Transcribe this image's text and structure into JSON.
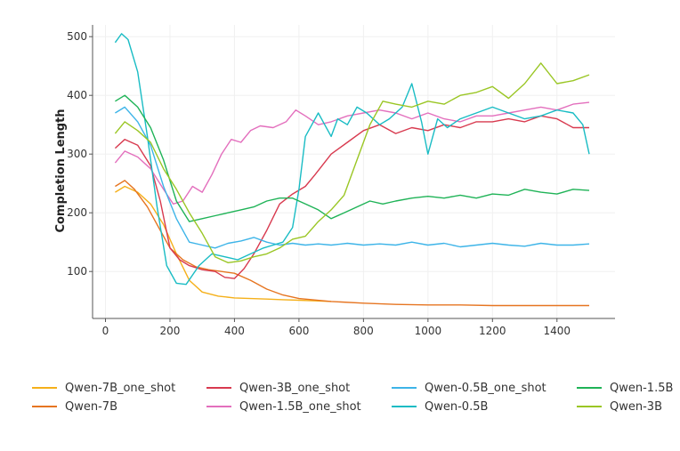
{
  "chart_data": {
    "type": "line",
    "title": "",
    "xlabel": "",
    "ylabel": "Completion Length",
    "xlim": [
      -40,
      1580
    ],
    "ylim": [
      20,
      520
    ],
    "xticks": [
      0,
      200,
      400,
      600,
      800,
      1000,
      1200,
      1400
    ],
    "yticks": [
      100,
      200,
      300,
      400,
      500
    ],
    "grid": true,
    "legend_position": "bottom",
    "series": [
      {
        "name": "Qwen-7B_one_shot",
        "color": "#f5b01a",
        "points": [
          [
            30,
            235
          ],
          [
            60,
            245
          ],
          [
            100,
            235
          ],
          [
            140,
            215
          ],
          [
            180,
            180
          ],
          [
            220,
            130
          ],
          [
            260,
            85
          ],
          [
            300,
            65
          ],
          [
            350,
            58
          ],
          [
            400,
            55
          ],
          [
            450,
            54
          ],
          [
            500,
            53
          ],
          [
            550,
            52
          ],
          [
            600,
            51
          ],
          [
            650,
            50
          ],
          [
            700,
            49
          ]
        ]
      },
      {
        "name": "Qwen-7B",
        "color": "#e67521",
        "points": [
          [
            30,
            245
          ],
          [
            60,
            255
          ],
          [
            90,
            240
          ],
          [
            130,
            210
          ],
          [
            170,
            170
          ],
          [
            200,
            140
          ],
          [
            240,
            120
          ],
          [
            280,
            108
          ],
          [
            320,
            103
          ],
          [
            360,
            100
          ],
          [
            400,
            97
          ],
          [
            450,
            85
          ],
          [
            500,
            70
          ],
          [
            550,
            60
          ],
          [
            600,
            54
          ],
          [
            700,
            49
          ],
          [
            800,
            46
          ],
          [
            900,
            44
          ],
          [
            1000,
            43
          ],
          [
            1100,
            43
          ],
          [
            1200,
            42
          ],
          [
            1300,
            42
          ],
          [
            1400,
            42
          ],
          [
            1500,
            42
          ]
        ]
      },
      {
        "name": "Qwen-3B_one_shot",
        "color": "#d83a4f",
        "points": [
          [
            30,
            310
          ],
          [
            60,
            325
          ],
          [
            100,
            315
          ],
          [
            140,
            280
          ],
          [
            170,
            220
          ],
          [
            200,
            140
          ],
          [
            230,
            120
          ],
          [
            260,
            110
          ],
          [
            300,
            103
          ],
          [
            340,
            100
          ],
          [
            370,
            90
          ],
          [
            400,
            88
          ],
          [
            430,
            105
          ],
          [
            460,
            130
          ],
          [
            500,
            170
          ],
          [
            540,
            215
          ],
          [
            580,
            232
          ],
          [
            620,
            245
          ],
          [
            650,
            265
          ],
          [
            700,
            300
          ],
          [
            750,
            320
          ],
          [
            800,
            340
          ],
          [
            850,
            350
          ],
          [
            900,
            335
          ],
          [
            950,
            345
          ],
          [
            1000,
            340
          ],
          [
            1050,
            350
          ],
          [
            1100,
            345
          ],
          [
            1150,
            355
          ],
          [
            1200,
            355
          ],
          [
            1250,
            360
          ],
          [
            1300,
            355
          ],
          [
            1350,
            365
          ],
          [
            1400,
            360
          ],
          [
            1450,
            345
          ],
          [
            1500,
            345
          ]
        ]
      },
      {
        "name": "Qwen-1.5B_one_shot",
        "color": "#e36fbd",
        "points": [
          [
            30,
            285
          ],
          [
            60,
            305
          ],
          [
            100,
            295
          ],
          [
            140,
            275
          ],
          [
            180,
            240
          ],
          [
            210,
            215
          ],
          [
            240,
            220
          ],
          [
            270,
            245
          ],
          [
            300,
            235
          ],
          [
            330,
            265
          ],
          [
            360,
            300
          ],
          [
            390,
            325
          ],
          [
            420,
            320
          ],
          [
            450,
            340
          ],
          [
            480,
            348
          ],
          [
            520,
            345
          ],
          [
            560,
            355
          ],
          [
            590,
            375
          ],
          [
            620,
            365
          ],
          [
            660,
            350
          ],
          [
            700,
            355
          ],
          [
            750,
            365
          ],
          [
            800,
            370
          ],
          [
            850,
            375
          ],
          [
            900,
            370
          ],
          [
            950,
            360
          ],
          [
            1000,
            370
          ],
          [
            1050,
            360
          ],
          [
            1100,
            355
          ],
          [
            1150,
            365
          ],
          [
            1200,
            365
          ],
          [
            1250,
            370
          ],
          [
            1300,
            375
          ],
          [
            1350,
            380
          ],
          [
            1400,
            375
          ],
          [
            1450,
            385
          ],
          [
            1500,
            388
          ]
        ]
      },
      {
        "name": "Qwen-0.5B_one_shot",
        "color": "#3db4e8",
        "points": [
          [
            30,
            370
          ],
          [
            60,
            380
          ],
          [
            100,
            355
          ],
          [
            140,
            315
          ],
          [
            180,
            245
          ],
          [
            220,
            190
          ],
          [
            260,
            150
          ],
          [
            300,
            145
          ],
          [
            340,
            140
          ],
          [
            380,
            148
          ],
          [
            420,
            152
          ],
          [
            460,
            158
          ],
          [
            500,
            150
          ],
          [
            540,
            145
          ],
          [
            580,
            148
          ],
          [
            620,
            145
          ],
          [
            660,
            147
          ],
          [
            700,
            145
          ],
          [
            750,
            148
          ],
          [
            800,
            145
          ],
          [
            850,
            147
          ],
          [
            900,
            145
          ],
          [
            950,
            150
          ],
          [
            1000,
            145
          ],
          [
            1050,
            148
          ],
          [
            1100,
            142
          ],
          [
            1150,
            145
          ],
          [
            1200,
            148
          ],
          [
            1250,
            145
          ],
          [
            1300,
            143
          ],
          [
            1350,
            148
          ],
          [
            1400,
            145
          ],
          [
            1450,
            145
          ],
          [
            1500,
            147
          ]
        ]
      },
      {
        "name": "Qwen-0.5B",
        "color": "#19bcc4",
        "points": [
          [
            30,
            490
          ],
          [
            50,
            505
          ],
          [
            70,
            495
          ],
          [
            100,
            440
          ],
          [
            130,
            330
          ],
          [
            160,
            210
          ],
          [
            190,
            110
          ],
          [
            220,
            80
          ],
          [
            250,
            78
          ],
          [
            290,
            110
          ],
          [
            330,
            130
          ],
          [
            370,
            125
          ],
          [
            410,
            120
          ],
          [
            450,
            130
          ],
          [
            490,
            140
          ],
          [
            520,
            145
          ],
          [
            550,
            150
          ],
          [
            580,
            175
          ],
          [
            600,
            240
          ],
          [
            620,
            330
          ],
          [
            660,
            370
          ],
          [
            700,
            330
          ],
          [
            720,
            360
          ],
          [
            750,
            350
          ],
          [
            780,
            380
          ],
          [
            810,
            370
          ],
          [
            850,
            350
          ],
          [
            880,
            360
          ],
          [
            920,
            380
          ],
          [
            950,
            420
          ],
          [
            980,
            355
          ],
          [
            1000,
            300
          ],
          [
            1030,
            360
          ],
          [
            1060,
            345
          ],
          [
            1100,
            360
          ],
          [
            1150,
            370
          ],
          [
            1200,
            380
          ],
          [
            1250,
            370
          ],
          [
            1300,
            360
          ],
          [
            1350,
            365
          ],
          [
            1400,
            375
          ],
          [
            1450,
            370
          ],
          [
            1480,
            350
          ],
          [
            1500,
            300
          ]
        ]
      },
      {
        "name": "Qwen-1.5B",
        "color": "#1fb357",
        "points": [
          [
            30,
            390
          ],
          [
            60,
            400
          ],
          [
            100,
            380
          ],
          [
            140,
            345
          ],
          [
            180,
            290
          ],
          [
            220,
            220
          ],
          [
            260,
            185
          ],
          [
            300,
            190
          ],
          [
            340,
            195
          ],
          [
            380,
            200
          ],
          [
            420,
            205
          ],
          [
            460,
            210
          ],
          [
            500,
            220
          ],
          [
            540,
            225
          ],
          [
            580,
            225
          ],
          [
            620,
            215
          ],
          [
            660,
            205
          ],
          [
            700,
            190
          ],
          [
            740,
            200
          ],
          [
            780,
            210
          ],
          [
            820,
            220
          ],
          [
            860,
            215
          ],
          [
            900,
            220
          ],
          [
            950,
            225
          ],
          [
            1000,
            228
          ],
          [
            1050,
            225
          ],
          [
            1100,
            230
          ],
          [
            1150,
            225
          ],
          [
            1200,
            232
          ],
          [
            1250,
            230
          ],
          [
            1300,
            240
          ],
          [
            1350,
            235
          ],
          [
            1400,
            232
          ],
          [
            1450,
            240
          ],
          [
            1500,
            238
          ]
        ]
      },
      {
        "name": "Qwen-3B",
        "color": "#9ac624",
        "points": [
          [
            30,
            335
          ],
          [
            60,
            355
          ],
          [
            100,
            340
          ],
          [
            140,
            320
          ],
          [
            180,
            275
          ],
          [
            220,
            240
          ],
          [
            260,
            200
          ],
          [
            300,
            165
          ],
          [
            340,
            125
          ],
          [
            380,
            115
          ],
          [
            420,
            118
          ],
          [
            460,
            125
          ],
          [
            500,
            130
          ],
          [
            540,
            140
          ],
          [
            580,
            155
          ],
          [
            620,
            160
          ],
          [
            660,
            185
          ],
          [
            700,
            205
          ],
          [
            740,
            230
          ],
          [
            780,
            290
          ],
          [
            820,
            350
          ],
          [
            860,
            390
          ],
          [
            900,
            385
          ],
          [
            950,
            380
          ],
          [
            1000,
            390
          ],
          [
            1050,
            385
          ],
          [
            1100,
            400
          ],
          [
            1150,
            405
          ],
          [
            1200,
            415
          ],
          [
            1250,
            395
          ],
          [
            1300,
            420
          ],
          [
            1350,
            455
          ],
          [
            1400,
            420
          ],
          [
            1450,
            425
          ],
          [
            1500,
            435
          ]
        ]
      }
    ]
  }
}
